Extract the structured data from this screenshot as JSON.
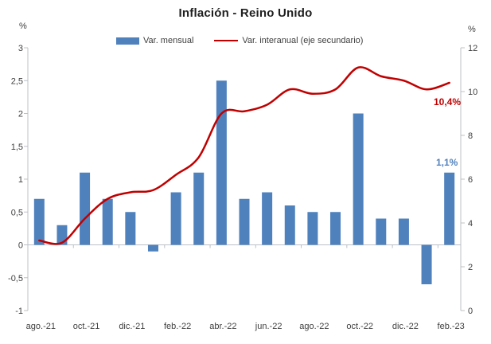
{
  "chart_data": {
    "type": "bar+line",
    "title": "Inflación - Reino Unido",
    "categories": [
      "ago.-21",
      "sep.-21",
      "oct.-21",
      "nov.-21",
      "dic.-21",
      "ene.-22",
      "feb.-22",
      "mar.-22",
      "abr.-22",
      "may.-22",
      "jun.-22",
      "jul.-22",
      "ago.-22",
      "sep.-22",
      "oct.-22",
      "nov.-22",
      "dic.-22",
      "ene.-23",
      "feb.-23"
    ],
    "x_tick_labels": [
      "ago.-21",
      "oct.-21",
      "dic.-21",
      "feb.-22",
      "abr.-22",
      "jun.-22",
      "ago.-22",
      "oct.-22",
      "dic.-22",
      "feb.-23"
    ],
    "series": [
      {
        "name": "Var. mensual",
        "type": "bar",
        "axis": "left",
        "color": "#4F81BD",
        "values": [
          0.7,
          0.3,
          1.1,
          0.7,
          0.5,
          -0.1,
          0.8,
          1.1,
          2.5,
          0.7,
          0.8,
          0.6,
          0.5,
          0.5,
          2.0,
          0.4,
          0.4,
          -0.6,
          1.1
        ]
      },
      {
        "name": "Var. interanual (eje secundario)",
        "type": "line",
        "axis": "right",
        "smooth": true,
        "color": "#C00000",
        "values": [
          3.2,
          3.1,
          4.2,
          5.1,
          5.4,
          5.5,
          6.2,
          7.0,
          9.0,
          9.1,
          9.4,
          10.1,
          9.9,
          10.1,
          11.1,
          10.7,
          10.5,
          10.1,
          10.4
        ]
      }
    ],
    "left_axis": {
      "unit": "%",
      "min": -1,
      "max": 3,
      "ticks": [
        "3",
        "2,5",
        "2",
        "1,5",
        "1",
        "0,5",
        "0",
        "-0,5",
        "-1"
      ]
    },
    "right_axis": {
      "unit": "%",
      "min": 0,
      "max": 12,
      "ticks": [
        "12",
        "10",
        "8",
        "6",
        "4",
        "2",
        "0"
      ]
    },
    "annotations": {
      "interanual_last": "10,4%",
      "mensual_last": "1,1%"
    },
    "grid": false,
    "legend_position": "top"
  },
  "colors": {
    "bar": "#4F81BD",
    "line": "#C00000",
    "axis": "#BCC0C6",
    "text": "#3f3f3f"
  }
}
